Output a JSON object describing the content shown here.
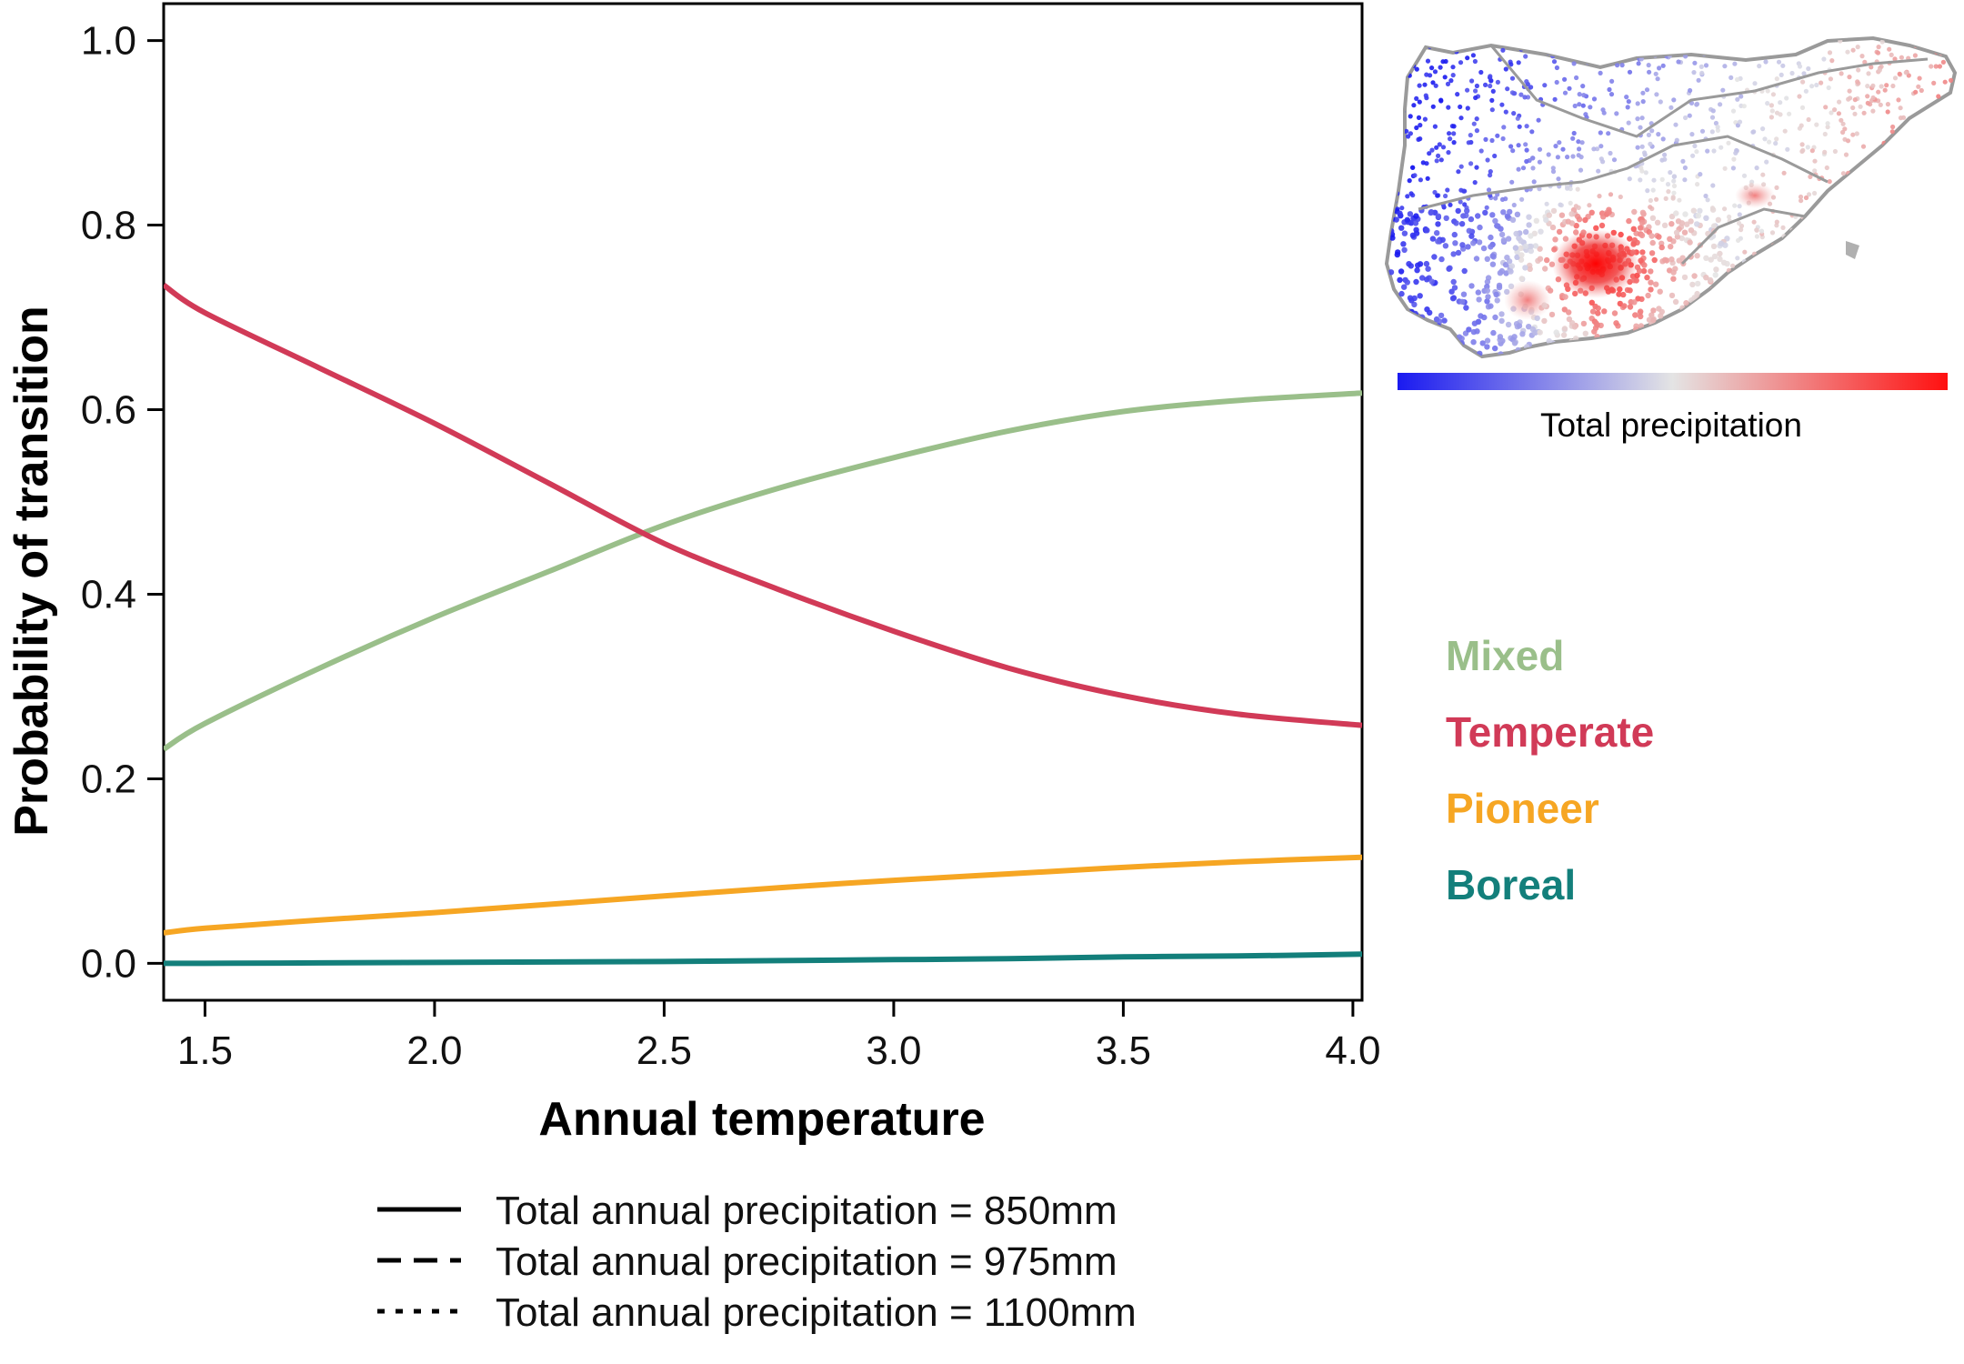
{
  "chart_data": {
    "type": "line",
    "xlabel": "Annual temperature",
    "ylabel": "Probability of transition",
    "xlim": [
      1.41,
      4.02
    ],
    "ylim": [
      -0.04,
      1.04
    ],
    "xticks": [
      "1.5",
      "2.0",
      "2.5",
      "3.0",
      "3.5",
      "4.0"
    ],
    "yticks": [
      "0.0",
      "0.2",
      "0.4",
      "0.6",
      "0.8",
      "1.0"
    ],
    "grid": false,
    "x": [
      1.41,
      1.5,
      1.75,
      2.0,
      2.25,
      2.5,
      2.75,
      3.0,
      3.25,
      3.5,
      3.75,
      4.02
    ],
    "series": [
      {
        "name": "Mixed",
        "color": "#9ABF8A",
        "values": [
          0.232,
          0.26,
          0.32,
          0.375,
          0.425,
          0.475,
          0.515,
          0.548,
          0.577,
          0.598,
          0.61,
          0.618
        ]
      },
      {
        "name": "Temperate",
        "color": "#D13A57",
        "values": [
          0.735,
          0.705,
          0.645,
          0.585,
          0.52,
          0.455,
          0.405,
          0.36,
          0.32,
          0.29,
          0.27,
          0.258
        ]
      },
      {
        "name": "Pioneer",
        "color": "#F6A623",
        "values": [
          0.033,
          0.038,
          0.047,
          0.055,
          0.064,
          0.073,
          0.082,
          0.09,
          0.097,
          0.104,
          0.11,
          0.115
        ]
      },
      {
        "name": "Boreal",
        "color": "#137F7B",
        "values": [
          0.0,
          0.0,
          0.0005,
          0.001,
          0.0015,
          0.002,
          0.003,
          0.004,
          0.005,
          0.007,
          0.008,
          0.01
        ]
      }
    ],
    "line_style_legend": [
      {
        "style": "solid",
        "label": "Total annual precipitation = 850mm"
      },
      {
        "style": "dashed",
        "label": "Total annual precipitation = 975mm"
      },
      {
        "style": "dotted",
        "label": "Total annual precipitation = 1100mm"
      }
    ],
    "category_legend_placement": "right",
    "inset_map": {
      "caption": "Total precipitation",
      "color_scale": [
        "#1A1AF0",
        "#E4E4E4",
        "#FF1010"
      ]
    }
  }
}
